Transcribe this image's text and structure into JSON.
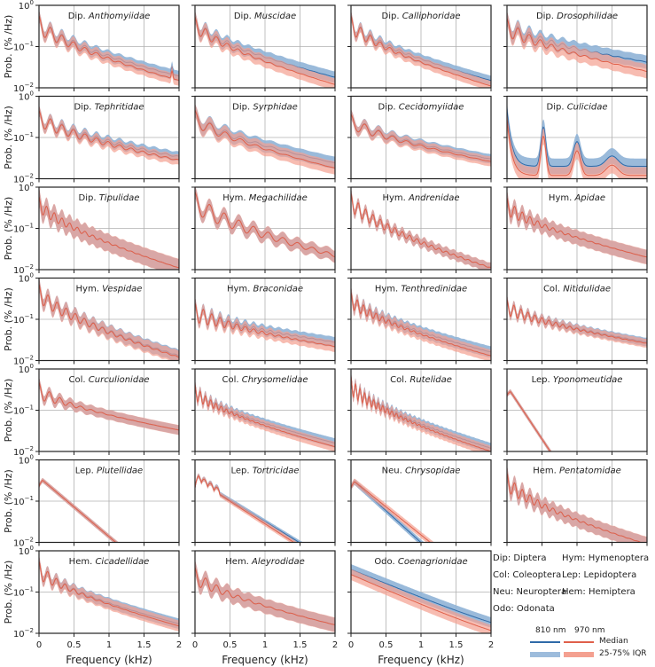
{
  "chart_data": {
    "type": "area",
    "layout": "7x4 small multiples",
    "ylabel": "Prob. (% /Hz)",
    "xlabel": "Frequency (kHz)",
    "xlim": [
      0,
      2
    ],
    "ylim": [
      0.01,
      1
    ],
    "yscale": "log",
    "xticks": [
      "0",
      "0.5",
      "1",
      "1.5",
      "2"
    ],
    "yticks": [
      {
        "base": "10",
        "exp": "-2"
      },
      {
        "base": "10",
        "exp": "-1"
      },
      {
        "base": "10",
        "exp": "0"
      }
    ],
    "grid": true,
    "series_colors": {
      "810nm_median": "#2f6aa8",
      "810nm_iqr": "#8fb3d6",
      "970nm_median": "#e0604a",
      "970nm_iqr": "#f4a090"
    },
    "panels": [
      {
        "order": "Dip.",
        "family": "Anthomyiidae",
        "f0": 0.165,
        "nh": 6,
        "start": 0.35,
        "end810": 0.019,
        "end970": 0.015,
        "iqr": 1.8,
        "amp": 1.6,
        "spike": 1.9
      },
      {
        "order": "Dip.",
        "family": "Muscidae",
        "f0": 0.155,
        "nh": 5,
        "start": 0.35,
        "end810": 0.018,
        "end970": 0.012,
        "iqr": 1.9,
        "amp": 1.3
      },
      {
        "order": "Dip.",
        "family": "Calliphoridae",
        "f0": 0.14,
        "nh": 5,
        "start": 0.35,
        "end810": 0.015,
        "end970": 0.011,
        "iqr": 1.7,
        "amp": 1.6
      },
      {
        "order": "Dip.",
        "family": "Drosophilidae",
        "f0": 0.16,
        "nh": 6,
        "start": 0.3,
        "end810": 0.042,
        "end970": 0.025,
        "iqr": 2.1,
        "amp": 1.6
      },
      {
        "order": "Dip.",
        "family": "Tephritidae",
        "f0": 0.165,
        "nh": 9,
        "start": 0.3,
        "end810": 0.034,
        "end970": 0.028,
        "iqr": 1.7,
        "amp": 1.3
      },
      {
        "order": "Dip.",
        "family": "Syrphidae",
        "f0": 0.22,
        "nh": 4,
        "start": 0.3,
        "end810": 0.024,
        "end970": 0.018,
        "iqr": 2.0,
        "amp": 1.4
      },
      {
        "order": "Dip.",
        "family": "Cecidomyiidae",
        "f0": 0.2,
        "nh": 5,
        "start": 0.25,
        "end810": 0.03,
        "end970": 0.026,
        "iqr": 1.7,
        "amp": 1.2
      },
      {
        "order": "Dip.",
        "family": "Culicidae",
        "f0": 0.5,
        "nh": 3,
        "start": 0.5,
        "end810": 0.02,
        "end970": 0.012,
        "iqr": 2.4,
        "amp": 2.2,
        "culicid": true
      },
      {
        "order": "Dip.",
        "family": "Tipulidae",
        "f0": 0.11,
        "nh": 8,
        "start": 0.4,
        "end810": 0.011,
        "end970": 0.011,
        "iqr": 2.6,
        "amp": 1.2
      },
      {
        "order": "Hym.",
        "family": "Megachilidae",
        "f0": 0.21,
        "nh": 9,
        "start": 0.45,
        "end810": 0.022,
        "end970": 0.022,
        "iqr": 1.9,
        "amp": 2.0
      },
      {
        "order": "Hym.",
        "family": "Andrenidae",
        "f0": 0.105,
        "nh": 12,
        "start": 0.45,
        "end810": 0.011,
        "end970": 0.011,
        "iqr": 1.7,
        "amp": 1.5
      },
      {
        "order": "Hym.",
        "family": "Apidae",
        "f0": 0.11,
        "nh": 7,
        "start": 0.35,
        "end810": 0.02,
        "end970": 0.02,
        "iqr": 2.2,
        "amp": 1.5
      },
      {
        "order": "Hym.",
        "family": "Vespidae",
        "f0": 0.13,
        "nh": 10,
        "start": 0.45,
        "end810": 0.013,
        "end970": 0.012,
        "iqr": 2.0,
        "amp": 1.5
      },
      {
        "order": "Hym.",
        "family": "Braconidae",
        "f0": 0.12,
        "nh": 8,
        "start": 0.15,
        "end810": 0.028,
        "end970": 0.022,
        "iqr": 1.8,
        "amp": 1.8
      },
      {
        "order": "Hym.",
        "family": "Tenthredinidae",
        "f0": 0.09,
        "nh": 9,
        "start": 0.3,
        "end810": 0.016,
        "end970": 0.013,
        "iqr": 1.9,
        "amp": 1.3
      },
      {
        "order": "Col.",
        "family": "Nitidulidae",
        "f0": 0.1,
        "nh": 10,
        "start": 0.2,
        "end810": 0.028,
        "end970": 0.026,
        "iqr": 1.6,
        "amp": 1.3
      },
      {
        "order": "Col.",
        "family": "Curculionidae",
        "f0": 0.15,
        "nh": 4,
        "start": 0.3,
        "end810": 0.033,
        "end970": 0.033,
        "iqr": 1.7,
        "amp": 1.5
      },
      {
        "order": "Col.",
        "family": "Chrysomelidae",
        "f0": 0.075,
        "nh": 8,
        "start": 0.28,
        "end810": 0.016,
        "end970": 0.013,
        "iqr": 1.7,
        "amp": 1.3
      },
      {
        "order": "Col.",
        "family": "Rutelidae",
        "f0": 0.065,
        "nh": 12,
        "start": 0.4,
        "end810": 0.012,
        "end970": 0.01,
        "iqr": 1.8,
        "amp": 1.7
      },
      {
        "order": "Lep.",
        "family": "Yponomeutidae",
        "f0": 0.0,
        "nh": 0,
        "start": 0.38,
        "end810": 0.0001,
        "end970": 0.0001,
        "iqr": 1.3,
        "amp": 0,
        "lep": true,
        "kill": 0.7
      },
      {
        "order": "Lep.",
        "family": "Plutellidae",
        "f0": 0.0,
        "nh": 0,
        "start": 0.38,
        "end810": 0.0005,
        "end970": 0.0005,
        "iqr": 1.3,
        "amp": 0,
        "lep": true,
        "kill": 1.0
      },
      {
        "order": "Lep.",
        "family": "Tortricidae",
        "f0": 0.05,
        "nh": 3,
        "start": 0.35,
        "end810": 0.0007,
        "end970": 0.0005,
        "iqr": 1.3,
        "amp": 1.2,
        "lep": true,
        "kill": 1.3
      },
      {
        "order": "Neu.",
        "family": "Chrysopidae",
        "f0": 0.0,
        "nh": 0,
        "start": 0.35,
        "end810": 0.0004,
        "end970": 0.0009,
        "iqr": 1.4,
        "amp": 0,
        "lep": true,
        "kill": 0.95
      },
      {
        "order": "Hem.",
        "family": "Pentatomidae",
        "f0": 0.11,
        "nh": 8,
        "start": 0.3,
        "end810": 0.009,
        "end970": 0.009,
        "iqr": 2.2,
        "amp": 1.6
      },
      {
        "order": "Hem.",
        "family": "Cicadellidae",
        "f0": 0.125,
        "nh": 5,
        "start": 0.35,
        "end810": 0.017,
        "end970": 0.015,
        "iqr": 1.8,
        "amp": 1.6
      },
      {
        "order": "Hem.",
        "family": "Aleyrodidae",
        "f0": 0.155,
        "nh": 5,
        "start": 0.25,
        "end810": 0.016,
        "end970": 0.016,
        "iqr": 2.2,
        "amp": 1.5
      },
      {
        "order": "Odo.",
        "family": "Coenagrionidae",
        "f0": 0.0,
        "nh": 0,
        "start": 0.35,
        "end810": 0.01,
        "end970": 0.006,
        "iqr": 1.8,
        "amp": 0,
        "odo": true
      }
    ]
  },
  "legend": {
    "abbreviations": [
      "Dip: Diptera",
      "Hym: Hymenoptera",
      "Col: Coleoptera",
      "Lep: Lepidoptera",
      "Neu: Neuroptera",
      "Hem: Hemiptera",
      "Odo: Odonata"
    ],
    "wavelength_810": "810 nm",
    "wavelength_970": "970 nm",
    "median_label": "Median",
    "iqr_label": "25-75% IQR"
  }
}
